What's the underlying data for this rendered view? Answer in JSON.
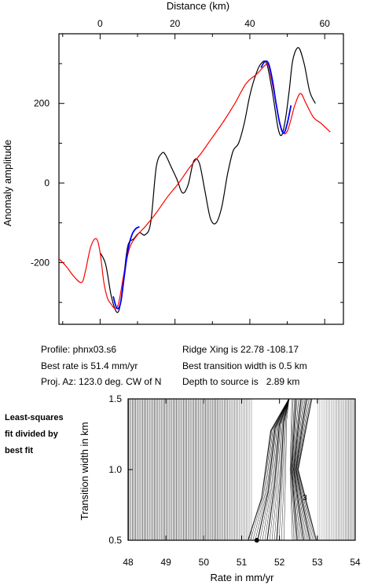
{
  "chart_data": [
    {
      "type": "line",
      "xlabel": "Distance (km)",
      "ylabel": "Anomaly amplitude",
      "xlim": [
        -11,
        65
      ],
      "ylim": [
        -355,
        375
      ],
      "xticks": [
        0,
        20,
        40,
        60
      ],
      "yticks": [
        -200,
        0,
        200
      ],
      "x_axis_position": "top",
      "grid": false,
      "series": [
        {
          "color": "#000000",
          "x": [
            0,
            1.5,
            3,
            4.5,
            5.5,
            6.5,
            7.5,
            9,
            10.5,
            12,
            13.5,
            15,
            16.5,
            17.5,
            19,
            20.5,
            22,
            23.5,
            25,
            26.5,
            28,
            29.5,
            31,
            32.5,
            34,
            35.5,
            37,
            38.5,
            40,
            41.5,
            43,
            44.5,
            46,
            47.5,
            48.5,
            49.5,
            50.5,
            51.5,
            53,
            54.5,
            56,
            57.5
          ],
          "y": [
            -175,
            -205,
            -285,
            -325,
            -300,
            -220,
            -155,
            -140,
            -125,
            -130,
            -100,
            40,
            75,
            70,
            40,
            10,
            -25,
            -5,
            55,
            50,
            -20,
            -90,
            -100,
            -60,
            20,
            80,
            100,
            150,
            220,
            270,
            300,
            300,
            230,
            140,
            120,
            160,
            230,
            310,
            340,
            300,
            230,
            200
          ]
        },
        {
          "color": "#ff0000",
          "x": [
            -11,
            -9,
            -7,
            -5,
            -4,
            -2.5,
            -1,
            0,
            1,
            2,
            3,
            4,
            5,
            6.5,
            8,
            10,
            12,
            15,
            18,
            21,
            24,
            27,
            30,
            33,
            36,
            39,
            42,
            44,
            45,
            46.5,
            48,
            49,
            50,
            51,
            52,
            53.5,
            55,
            57,
            59,
            61.5
          ],
          "y": [
            -190,
            -210,
            -235,
            -250,
            -225,
            -160,
            -140,
            -175,
            -250,
            -290,
            -305,
            -315,
            -300,
            -220,
            -160,
            -130,
            -110,
            -75,
            -35,
            0,
            40,
            75,
            115,
            155,
            200,
            250,
            275,
            295,
            295,
            225,
            150,
            125,
            130,
            160,
            195,
            225,
            200,
            165,
            150,
            128
          ]
        },
        {
          "color": "#0000ff",
          "x": [
            3.5,
            4.5,
            5.5,
            6.5,
            7.5,
            8.5,
            9.5,
            10.5
          ],
          "y": [
            -285,
            -315,
            -300,
            -230,
            -165,
            -130,
            -115,
            -110
          ]
        },
        {
          "color": "#0000ff",
          "x": [
            43,
            44,
            45,
            46,
            47,
            48,
            49,
            50,
            51
          ],
          "y": [
            290,
            305,
            300,
            260,
            200,
            150,
            125,
            150,
            195
          ]
        }
      ]
    },
    {
      "type": "contour",
      "xlabel": "Rate in mm/yr",
      "ylabel": "Transition width in km",
      "xlim": [
        48,
        54
      ],
      "ylim": [
        0.5,
        1.5
      ],
      "xticks": [
        48,
        49,
        50,
        51,
        52,
        53,
        54
      ],
      "ytick_labels": [
        "0.5",
        "1.0",
        "1.5"
      ],
      "contour_label": "3",
      "best_fit_point": {
        "x": 51.4,
        "y": 0.5
      }
    }
  ],
  "info": {
    "profile": "Profile: phnx03.s6",
    "best_rate": "Best rate is 51.4 mm/yr",
    "proj_az": "Proj. Az: 123.0 deg. CW of N",
    "ridge_xing": "Ridge Xing is 22.78 -108.17",
    "best_transition": "Best transition width is 0.5 km",
    "depth_label": "Depth to source is",
    "depth_value": "2.89 km"
  },
  "side_note": [
    "Least-squares",
    "fit divided by",
    "best fit"
  ]
}
